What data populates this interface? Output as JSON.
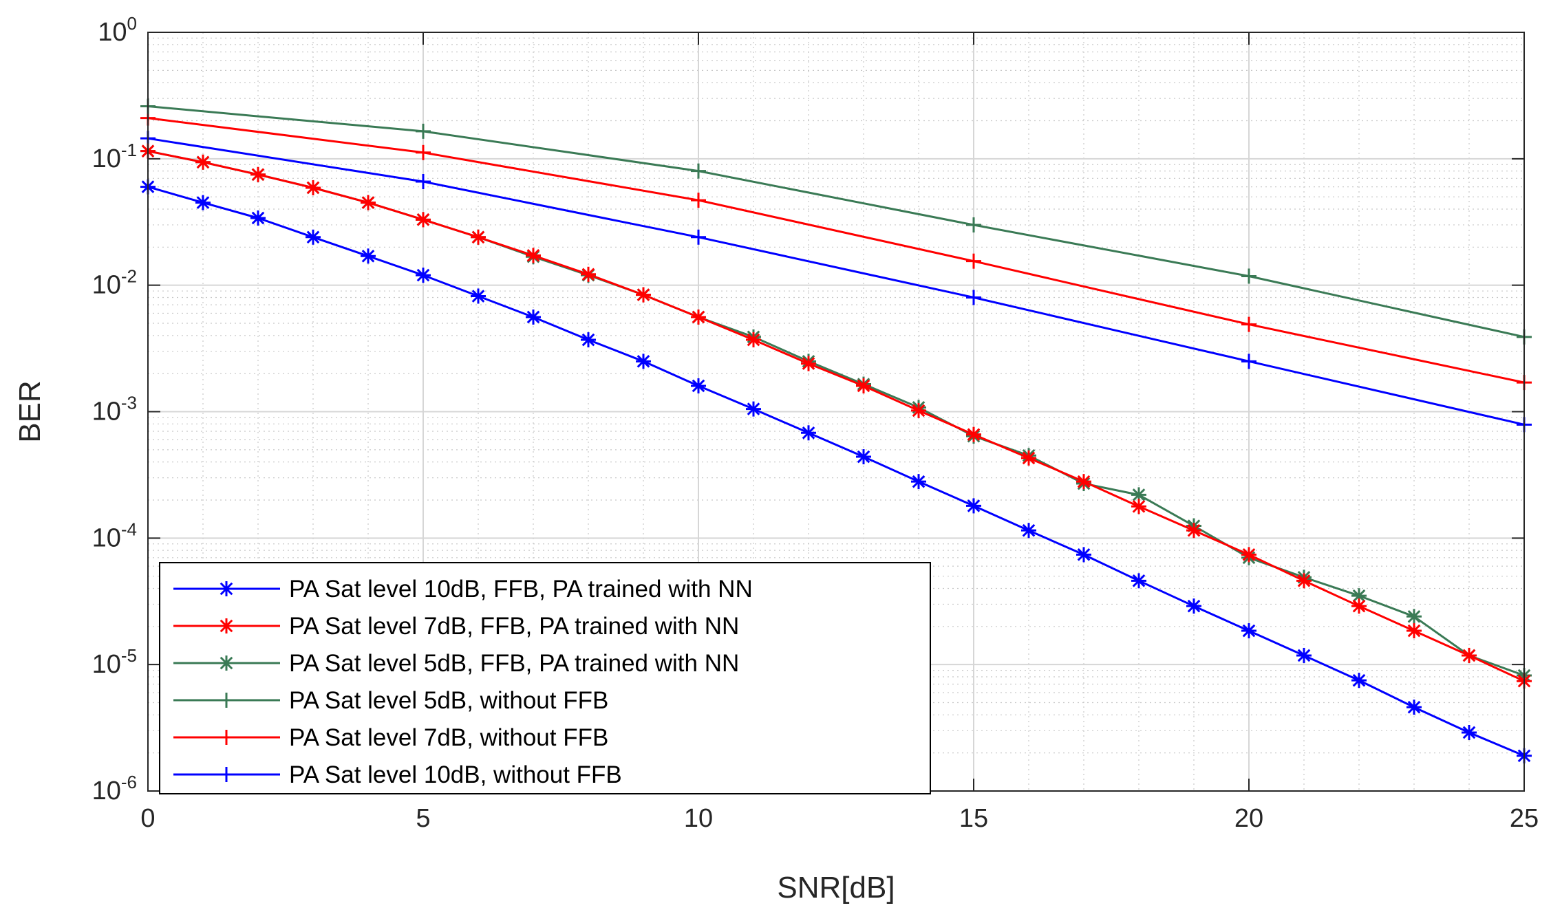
{
  "chart_data": {
    "type": "line",
    "xlabel": "SNR[dB]",
    "ylabel": "BER",
    "xscale": "linear",
    "yscale": "log",
    "xlim": [
      0,
      25
    ],
    "ylim": [
      1e-06,
      1
    ],
    "grid": true,
    "minor_grid": true,
    "legend_position": "bottom-left",
    "x_ticks": [
      0,
      5,
      10,
      15,
      20,
      25
    ],
    "x_tick_labels": [
      "0",
      "5",
      "10",
      "15",
      "20",
      "25"
    ],
    "y_ticks": [
      1e-06,
      1e-05,
      0.0001,
      0.001,
      0.01,
      0.1,
      1
    ],
    "y_tick_labels": [
      {
        "base": "10",
        "exp": "-6"
      },
      {
        "base": "10",
        "exp": "-5"
      },
      {
        "base": "10",
        "exp": "-4"
      },
      {
        "base": "10",
        "exp": "-3"
      },
      {
        "base": "10",
        "exp": "-2"
      },
      {
        "base": "10",
        "exp": "-1"
      },
      {
        "base": "10",
        "exp": "0"
      }
    ],
    "series": [
      {
        "name": "PA Sat level 10dB, FFB, PA trained with NN",
        "color": "#0000ff",
        "marker": "asterisk",
        "x": [
          0,
          1,
          2,
          3,
          4,
          5,
          6,
          7,
          8,
          9,
          10,
          11,
          12,
          13,
          14,
          15,
          16,
          17,
          18,
          19,
          20,
          21,
          22,
          23,
          24,
          25
        ],
        "y": [
          0.06,
          0.045,
          0.034,
          0.024,
          0.017,
          0.012,
          0.0082,
          0.0056,
          0.0037,
          0.0025,
          0.0016,
          0.00105,
          0.00068,
          0.00044,
          0.00028,
          0.00018,
          0.000115,
          7.4e-05,
          4.6e-05,
          2.9e-05,
          1.85e-05,
          1.18e-05,
          7.5e-06,
          4.6e-06,
          2.9e-06,
          1.9e-06
        ]
      },
      {
        "name": "PA Sat level 7dB, FFB, PA trained with NN",
        "color": "#ff0000",
        "marker": "asterisk",
        "x": [
          0,
          1,
          2,
          3,
          4,
          5,
          6,
          7,
          8,
          9,
          10,
          11,
          12,
          13,
          14,
          15,
          16,
          17,
          18,
          19,
          20,
          21,
          22,
          23,
          24,
          25
        ],
        "y": [
          0.115,
          0.094,
          0.075,
          0.059,
          0.045,
          0.033,
          0.024,
          0.0172,
          0.0122,
          0.0084,
          0.0056,
          0.0037,
          0.0024,
          0.0016,
          0.00102,
          0.00066,
          0.00043,
          0.00028,
          0.000178,
          0.000115,
          7.4e-05,
          4.6e-05,
          2.9e-05,
          1.85e-05,
          1.18e-05,
          7.4e-06
        ]
      },
      {
        "name": "PA Sat level 5dB, FFB, PA trained with NN",
        "color": "#3a7a55",
        "marker": "asterisk",
        "x": [
          0,
          1,
          2,
          3,
          4,
          5,
          6,
          7,
          8,
          9,
          10,
          11,
          12,
          13,
          14,
          15,
          16,
          17,
          18,
          19,
          20,
          21,
          22,
          23,
          24,
          25
        ],
        "y": [
          0.115,
          0.094,
          0.075,
          0.059,
          0.045,
          0.033,
          0.024,
          0.0168,
          0.012,
          0.0084,
          0.0056,
          0.0039,
          0.0025,
          0.00165,
          0.00108,
          0.00064,
          0.00045,
          0.00027,
          0.00022,
          0.000125,
          7e-05,
          4.9e-05,
          3.5e-05,
          2.4e-05,
          1.18e-05,
          8.2e-06
        ]
      },
      {
        "name": "PA Sat level 5dB, without FFB",
        "color": "#3a7a55",
        "marker": "plus",
        "x": [
          0,
          5,
          10,
          15,
          20,
          25
        ],
        "y": [
          0.26,
          0.165,
          0.08,
          0.03,
          0.0118,
          0.0039
        ]
      },
      {
        "name": "PA Sat level 7dB, without FFB",
        "color": "#ff0000",
        "marker": "plus",
        "x": [
          0,
          5,
          10,
          15,
          20,
          25
        ],
        "y": [
          0.21,
          0.112,
          0.047,
          0.0155,
          0.0049,
          0.0017
        ]
      },
      {
        "name": "PA Sat level 10dB, without FFB",
        "color": "#0000ff",
        "marker": "plus",
        "x": [
          0,
          5,
          10,
          15,
          20,
          25
        ],
        "y": [
          0.145,
          0.066,
          0.024,
          0.008,
          0.0025,
          0.00079
        ]
      }
    ]
  }
}
